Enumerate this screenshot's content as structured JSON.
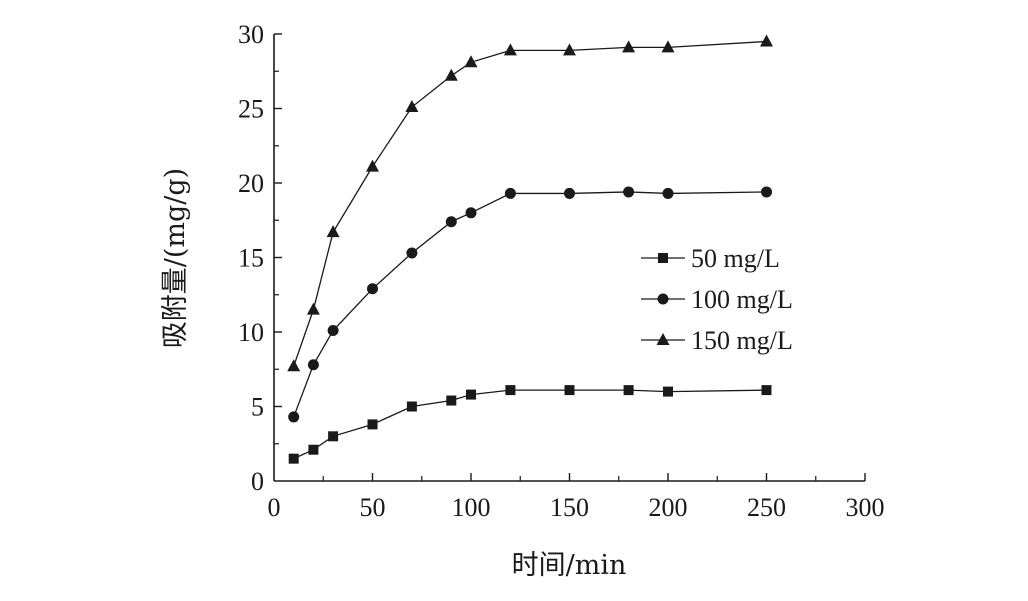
{
  "chart_data": {
    "type": "line",
    "xlabel": "时间/min",
    "ylabel": "吸附量/(mg/g)",
    "xlim": [
      0,
      300
    ],
    "ylim": [
      0,
      30
    ],
    "x_ticks": [
      "0",
      "50",
      "100",
      "150",
      "200",
      "250",
      "300"
    ],
    "y_ticks": [
      "0",
      "5",
      "10",
      "15",
      "20",
      "25",
      "30"
    ],
    "grid": false,
    "legend_position": "right",
    "series": [
      {
        "name": "50 mg/L",
        "marker": "square",
        "x": [
          10,
          20,
          30,
          50,
          70,
          90,
          100,
          120,
          150,
          180,
          200,
          250
        ],
        "y": [
          1.5,
          2.1,
          3.0,
          3.8,
          5.0,
          5.4,
          5.8,
          6.1,
          6.1,
          6.1,
          6.0,
          6.1
        ]
      },
      {
        "name": "100 mg/L",
        "marker": "circle",
        "x": [
          10,
          20,
          30,
          50,
          70,
          90,
          100,
          120,
          150,
          180,
          200,
          250
        ],
        "y": [
          4.3,
          7.8,
          10.1,
          12.9,
          15.3,
          17.4,
          18.0,
          19.3,
          19.3,
          19.4,
          19.3,
          19.4
        ]
      },
      {
        "name": "150 mg/L",
        "marker": "triangle",
        "x": [
          10,
          20,
          30,
          50,
          70,
          90,
          100,
          120,
          150,
          180,
          200,
          250
        ],
        "y": [
          7.7,
          11.5,
          16.7,
          21.1,
          25.1,
          27.2,
          28.1,
          28.9,
          28.9,
          29.1,
          29.1,
          29.5
        ]
      }
    ]
  },
  "colors": {
    "ink": "#1a1a1a",
    "background": "#ffffff"
  }
}
